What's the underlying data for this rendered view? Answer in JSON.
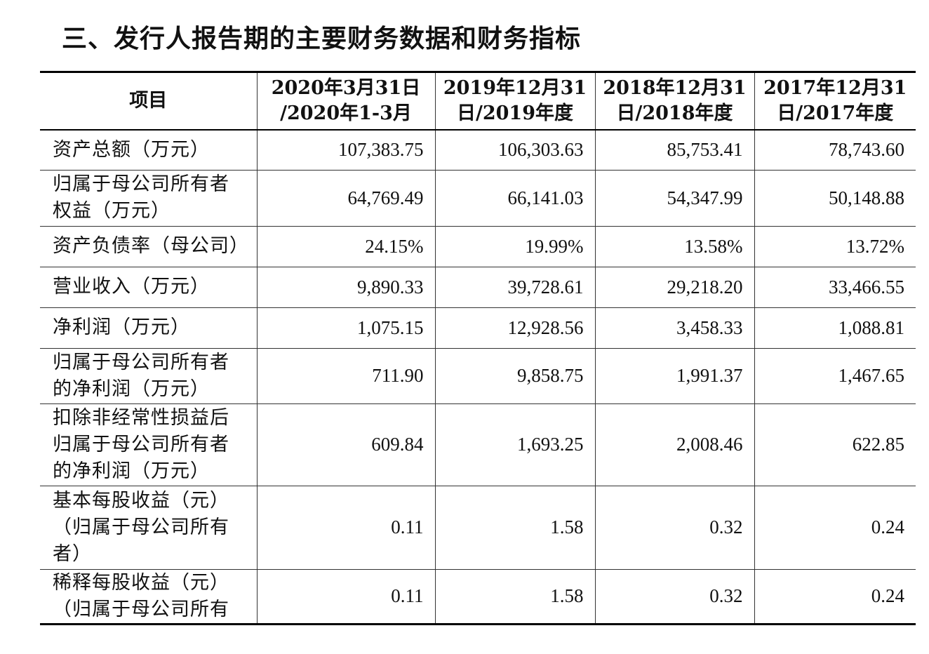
{
  "title": "三、发行人报告期的主要财务数据和财务指标",
  "table": {
    "headers": [
      {
        "lines": [
          "项目"
        ]
      },
      {
        "lines": [
          "2020年3月31日",
          "/2020年1-3月"
        ]
      },
      {
        "lines": [
          "2019年12月31",
          "日/2019年度"
        ]
      },
      {
        "lines": [
          "2018年12月31",
          "日/2018年度"
        ]
      },
      {
        "lines": [
          "2017年12月31",
          "日/2017年度"
        ]
      }
    ],
    "rows": [
      {
        "label": [
          "资产总额（万元）"
        ],
        "values": [
          "107,383.75",
          "106,303.63",
          "85,753.41",
          "78,743.60"
        ]
      },
      {
        "label": [
          "归属于母公司所有者",
          "权益（万元）"
        ],
        "values": [
          "64,769.49",
          "66,141.03",
          "54,347.99",
          "50,148.88"
        ]
      },
      {
        "label": [
          "资产负债率（母公司）"
        ],
        "values": [
          "24.15%",
          "19.99%",
          "13.58%",
          "13.72%"
        ]
      },
      {
        "label": [
          "营业收入（万元）"
        ],
        "values": [
          "9,890.33",
          "39,728.61",
          "29,218.20",
          "33,466.55"
        ]
      },
      {
        "label": [
          "净利润（万元）"
        ],
        "values": [
          "1,075.15",
          "12,928.56",
          "3,458.33",
          "1,088.81"
        ]
      },
      {
        "label": [
          "归属于母公司所有者",
          "的净利润（万元）"
        ],
        "values": [
          "711.90",
          "9,858.75",
          "1,991.37",
          "1,467.65"
        ]
      },
      {
        "label": [
          "扣除非经常性损益后",
          "归属于母公司所有者",
          "的净利润（万元）"
        ],
        "values": [
          "609.84",
          "1,693.25",
          "2,008.46",
          "622.85"
        ]
      },
      {
        "label": [
          "基本每股收益（元）",
          "（归属于母公司所有",
          "者）"
        ],
        "values": [
          "0.11",
          "1.58",
          "0.32",
          "0.24"
        ]
      },
      {
        "label": [
          "稀释每股收益（元）",
          "（归属于母公司所有"
        ],
        "values": [
          "0.11",
          "1.58",
          "0.32",
          "0.24"
        ]
      }
    ]
  }
}
